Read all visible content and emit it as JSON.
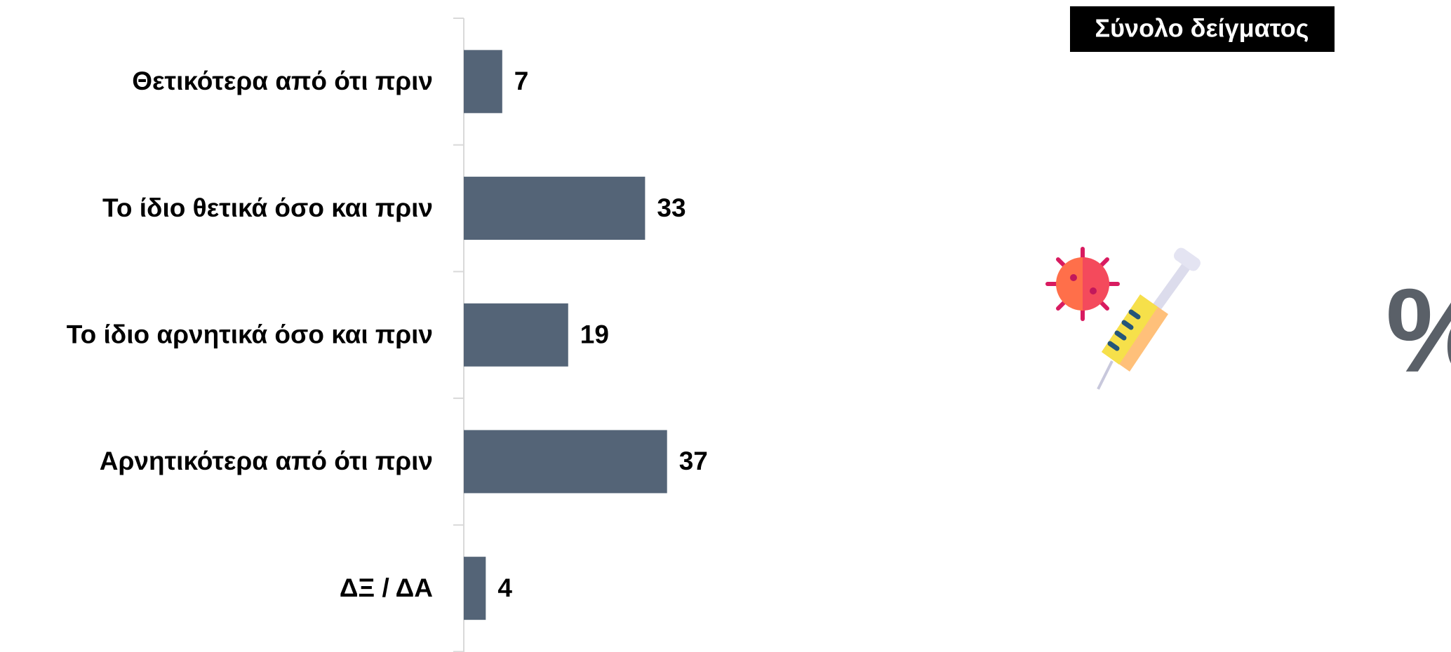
{
  "chart_data": {
    "type": "bar",
    "orientation": "horizontal",
    "title": "Σύνολο δείγματος",
    "unit": "%",
    "categories": [
      "Θετικότερα από ότι πριν",
      "Το ίδιο θετικά όσο και πριν",
      "Το ίδιο αρνητικά όσο και πριν",
      "Αρνητικότερα από ότι πριν",
      "ΔΞ / ΔΑ"
    ],
    "values": [
      7,
      33,
      19,
      37,
      4
    ],
    "color": "#546477",
    "xlim": [
      0,
      100
    ]
  }
}
